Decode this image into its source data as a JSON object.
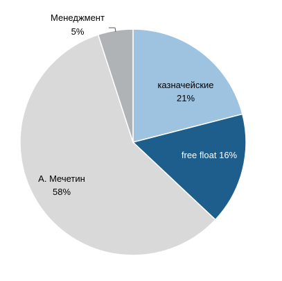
{
  "chart_data": {
    "type": "pie",
    "title": "",
    "slices": [
      {
        "label": "казначейские",
        "value": 21,
        "display": "21%",
        "color": "#9dc3e0"
      },
      {
        "label": "free float 16%",
        "value": 16,
        "display": "",
        "color": "#1d5e8c"
      },
      {
        "label": "А. Мечетин",
        "value": 58,
        "display": "58%",
        "color": "#d9d9d9"
      },
      {
        "label": "Менеджмент",
        "value": 5,
        "display": "5%",
        "color": "#b0b3b6"
      }
    ],
    "start_angle": "12 o'clock",
    "direction": "clockwise",
    "legend": "none"
  }
}
